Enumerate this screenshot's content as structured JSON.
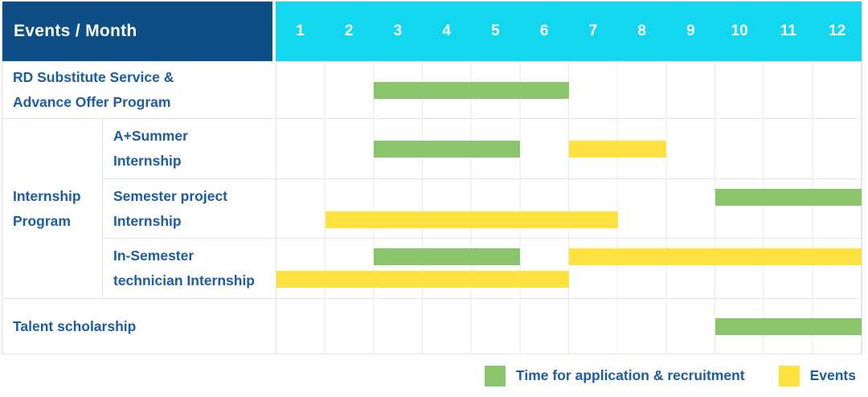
{
  "colors": {
    "green": "#8BC56B",
    "yellow": "#FFE240",
    "header_blue": "#0D4E87",
    "cyan": "#12D7EF",
    "text_blue": "#1B5CA5",
    "border": "#E3E3E3",
    "grid": "#E9E9E9"
  },
  "header": {
    "title": "Events / Month",
    "months": [
      "1",
      "2",
      "3",
      "4",
      "5",
      "6",
      "7",
      "8",
      "9",
      "10",
      "11",
      "12"
    ]
  },
  "rows": {
    "rd": {
      "label": "RD Substitute Service &\nAdvance Offer Program"
    },
    "internship_group": {
      "label": "Internship\nProgram"
    },
    "summer": {
      "label": "A+Summer\nInternship"
    },
    "semester_project": {
      "label": "Semester project\nInternship"
    },
    "in_semester": {
      "label": "In-Semester\ntechnician Internship"
    },
    "talent": {
      "label": "Talent scholarship"
    }
  },
  "legend": {
    "items": [
      {
        "kind": "application",
        "color": "#8BC56B",
        "label": "Time for application & recruitment"
      },
      {
        "kind": "event",
        "color": "#FFE240",
        "label": "Events"
      }
    ]
  },
  "chart_data": {
    "type": "gantt",
    "x_unit": "month",
    "x_range": [
      1,
      12
    ],
    "x_ticks": [
      1,
      2,
      3,
      4,
      5,
      6,
      7,
      8,
      9,
      10,
      11,
      12
    ],
    "grid": true,
    "legend_position": "bottom-right",
    "rows": [
      {
        "id": "rd",
        "label": "RD Substitute Service & Advance Offer Program",
        "group": null
      },
      {
        "id": "summer",
        "label": "A+Summer Internship",
        "group": "Internship Program"
      },
      {
        "id": "semester-project",
        "label": "Semester project Internship",
        "group": "Internship Program"
      },
      {
        "id": "in-semester",
        "label": "In-Semester technician Internship",
        "group": "Internship Program"
      },
      {
        "id": "talent",
        "label": "Talent scholarship",
        "group": null
      }
    ],
    "bars": [
      {
        "row": "rd",
        "kind": "application",
        "track": "single",
        "start": 3,
        "end": 6
      },
      {
        "row": "summer",
        "kind": "application",
        "track": "single",
        "start": 3,
        "end": 5
      },
      {
        "row": "summer",
        "kind": "event",
        "track": "single",
        "start": 7,
        "end": 8
      },
      {
        "row": "semester-project",
        "kind": "application",
        "track": "top",
        "start": 10,
        "end": 12
      },
      {
        "row": "semester-project",
        "kind": "event",
        "track": "bottom",
        "start": 2,
        "end": 7
      },
      {
        "row": "in-semester",
        "kind": "application",
        "track": "top",
        "start": 3,
        "end": 5
      },
      {
        "row": "in-semester",
        "kind": "event",
        "track": "top",
        "start": 7,
        "end": 12
      },
      {
        "row": "in-semester",
        "kind": "event",
        "track": "bottom",
        "start": 1,
        "end": 6
      },
      {
        "row": "talent",
        "kind": "application",
        "track": "single",
        "start": 10,
        "end": 12
      }
    ]
  }
}
